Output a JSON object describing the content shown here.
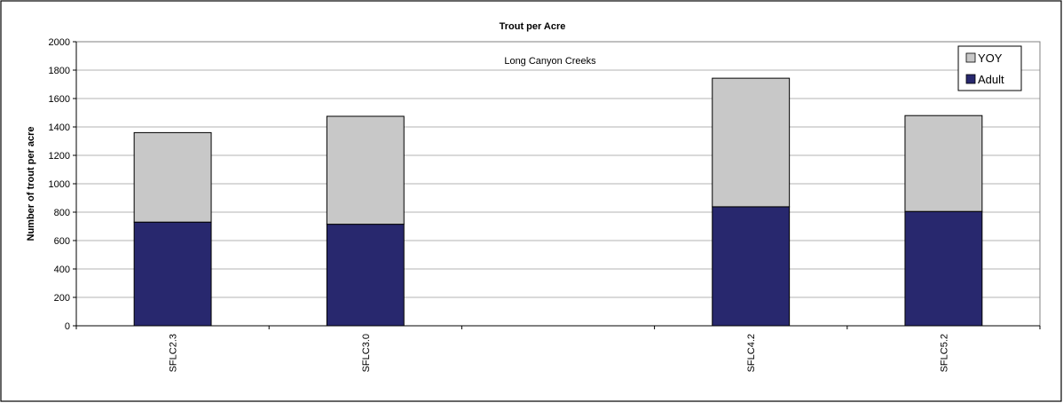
{
  "chart_data": {
    "type": "bar",
    "stacked": true,
    "title": "Trout per Acre",
    "subtitle": "Long Canyon Creeks",
    "ylabel": "Number of trout per acre",
    "xlabel": "",
    "ylim": [
      0,
      2000
    ],
    "ytick_step": 200,
    "grid": true,
    "legend_position": "top-right",
    "categories": [
      "SFLC2.3",
      "SFLC3.0",
      "",
      "SFLC4.2",
      "SFLC5.2"
    ],
    "series": [
      {
        "name": "Adult",
        "values": [
          730,
          715,
          null,
          838,
          805
        ],
        "color": "#28286e"
      },
      {
        "name": "YOY",
        "values": [
          630,
          760,
          null,
          905,
          675
        ],
        "color": "#c8c8c8"
      }
    ],
    "legend_order": [
      "YOY",
      "Adult"
    ]
  }
}
